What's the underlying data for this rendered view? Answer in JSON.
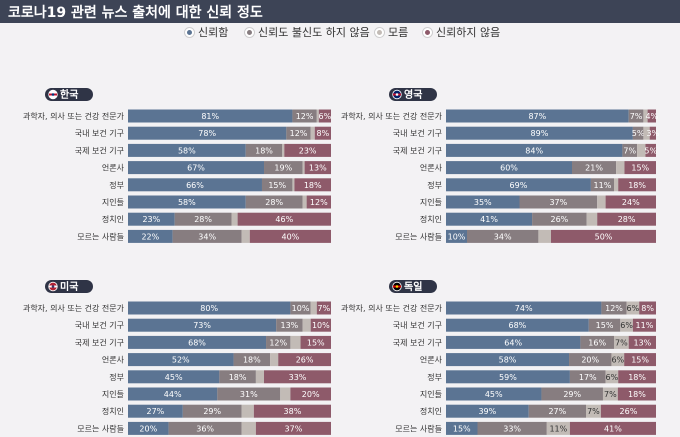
{
  "title": "코로나19 관련 뉴스 출처에 대한 신뢰 정도",
  "legend": [
    {
      "label": "신뢰함",
      "color": "#5b7493"
    },
    {
      "label": "신뢰도 불신도 하지 않음",
      "color": "#877d80"
    },
    {
      "label": "모름",
      "color": "#c2bbb6"
    },
    {
      "label": "신뢰하지 않음",
      "color": "#8e5a6a"
    }
  ],
  "chart_data": [
    {
      "type": "bar",
      "stacked": true,
      "orientation": "horizontal",
      "title": "한국",
      "flag_colors": [
        "#ffffff",
        "#c8102e",
        "#003478"
      ],
      "categories": [
        "과학자, 의사 또는 건강 전문가",
        "국내 보건 기구",
        "국제 보건 기구",
        "언론사",
        "정부",
        "지인들",
        "정치인",
        "모르는 사람들"
      ],
      "series": [
        {
          "name": "신뢰함",
          "values": [
            81,
            78,
            58,
            67,
            66,
            58,
            23,
            22
          ],
          "labels": [
            "81%",
            "78%",
            "58%",
            "67%",
            "66%",
            "58%",
            "23%",
            "22%"
          ]
        },
        {
          "name": "신뢰도 불신도 하지 않음",
          "values": [
            12,
            12,
            18,
            19,
            15,
            28,
            28,
            34
          ],
          "labels": [
            "12%",
            "12%",
            "18%",
            "19%",
            "15%",
            "28%",
            "28%",
            "34%"
          ]
        },
        {
          "name": "모름",
          "values": [
            1,
            2,
            1,
            1,
            1,
            2,
            3,
            4
          ],
          "labels": [
            "",
            "",
            "",
            "",
            "",
            "",
            "",
            ""
          ]
        },
        {
          "name": "신뢰하지 않음",
          "values": [
            6,
            8,
            23,
            13,
            18,
            12,
            46,
            40
          ],
          "labels": [
            "6%",
            "8%",
            "23%",
            "13%",
            "18%",
            "12%",
            "46%",
            "40%"
          ]
        }
      ]
    },
    {
      "type": "bar",
      "stacked": true,
      "orientation": "horizontal",
      "title": "영국",
      "flag_colors": [
        "#012169",
        "#c8102e",
        "#ffffff"
      ],
      "categories": [
        "과학자, 의사 또는 건강 전문가",
        "국내 보건 기구",
        "국제 보건 기구",
        "언론사",
        "정부",
        "지인들",
        "정치인",
        "모르는 사람들"
      ],
      "series": [
        {
          "name": "신뢰함",
          "values": [
            87,
            89,
            84,
            60,
            69,
            35,
            41,
            10
          ],
          "labels": [
            "87%",
            "89%",
            "84%",
            "60%",
            "69%",
            "35%",
            "41%",
            "10%"
          ]
        },
        {
          "name": "신뢰도 불신도 하지 않음",
          "values": [
            7,
            5,
            7,
            21,
            11,
            37,
            26,
            34
          ],
          "labels": [
            "7%",
            "5%",
            "7%",
            "21%",
            "11%",
            "37%",
            "26%",
            "34%"
          ]
        },
        {
          "name": "모름",
          "values": [
            2,
            3,
            4,
            4,
            2,
            4,
            5,
            6
          ],
          "labels": [
            "",
            "",
            "",
            "",
            "",
            "",
            "",
            ""
          ]
        },
        {
          "name": "신뢰하지 않음",
          "values": [
            4,
            3,
            5,
            15,
            18,
            24,
            28,
            50
          ],
          "labels": [
            "4%",
            "3%",
            "5%",
            "15%",
            "18%",
            "24%",
            "28%",
            "50%"
          ]
        }
      ]
    },
    {
      "type": "bar",
      "stacked": true,
      "orientation": "horizontal",
      "title": "미국",
      "flag_colors": [
        "#b22234",
        "#ffffff",
        "#3c3b6e"
      ],
      "categories": [
        "과학자, 의사 또는 건강 전문가",
        "국내 보건 기구",
        "국제 보건 기구",
        "언론사",
        "정부",
        "지인들",
        "정치인",
        "모르는 사람들"
      ],
      "series": [
        {
          "name": "신뢰함",
          "values": [
            80,
            73,
            68,
            52,
            45,
            44,
            27,
            20
          ],
          "labels": [
            "80%",
            "73%",
            "68%",
            "52%",
            "45%",
            "44%",
            "27%",
            "20%"
          ]
        },
        {
          "name": "신뢰도 불신도 하지 않음",
          "values": [
            10,
            13,
            12,
            18,
            18,
            31,
            29,
            36
          ],
          "labels": [
            "10%",
            "13%",
            "12%",
            "18%",
            "18%",
            "31%",
            "29%",
            "36%"
          ]
        },
        {
          "name": "모름",
          "values": [
            3,
            4,
            5,
            4,
            4,
            5,
            6,
            7
          ],
          "labels": [
            "",
            "",
            "",
            "",
            "",
            "",
            "",
            ""
          ]
        },
        {
          "name": "신뢰하지 않음",
          "values": [
            7,
            10,
            15,
            26,
            33,
            20,
            38,
            37
          ],
          "labels": [
            "7%",
            "10%",
            "15%",
            "26%",
            "33%",
            "20%",
            "38%",
            "37%"
          ]
        }
      ]
    },
    {
      "type": "bar",
      "stacked": true,
      "orientation": "horizontal",
      "title": "독일",
      "flag_colors": [
        "#000000",
        "#dd0000",
        "#ffce00"
      ],
      "categories": [
        "과학자, 의사 또는 건강 전문가",
        "국내 보건 기구",
        "국제 보건 기구",
        "언론사",
        "정부",
        "지인들",
        "정치인",
        "모르는 사람들"
      ],
      "series": [
        {
          "name": "신뢰함",
          "values": [
            74,
            68,
            64,
            58,
            59,
            45,
            39,
            15
          ],
          "labels": [
            "74%",
            "68%",
            "64%",
            "58%",
            "59%",
            "45%",
            "39%",
            "15%"
          ]
        },
        {
          "name": "신뢰도 불신도 하지 않음",
          "values": [
            12,
            15,
            16,
            20,
            17,
            29,
            27,
            33
          ],
          "labels": [
            "12%",
            "15%",
            "16%",
            "20%",
            "17%",
            "29%",
            "27%",
            "33%"
          ]
        },
        {
          "name": "모름",
          "values": [
            6,
            6,
            7,
            6,
            6,
            7,
            7,
            11
          ],
          "labels": [
            "6%",
            "6%",
            "7%",
            "6%",
            "6%",
            "7%",
            "7%",
            "11%"
          ]
        },
        {
          "name": "신뢰하지 않음",
          "values": [
            8,
            11,
            13,
            15,
            18,
            18,
            26,
            41
          ],
          "labels": [
            "8%",
            "11%",
            "13%",
            "15%",
            "18%",
            "18%",
            "26%",
            "41%"
          ]
        }
      ]
    }
  ]
}
